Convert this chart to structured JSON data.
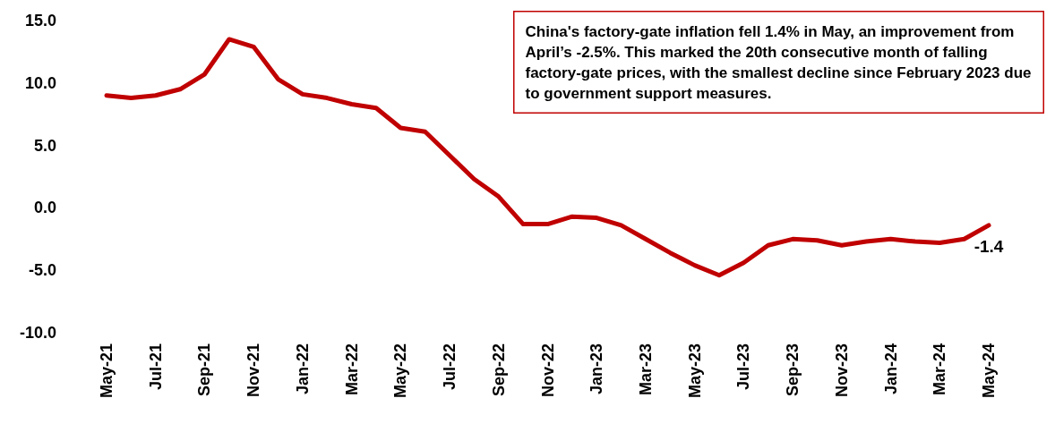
{
  "chart_data": {
    "type": "line",
    "categories": [
      "May-21",
      null,
      "Jul-21",
      null,
      "Sep-21",
      null,
      "Nov-21",
      null,
      "Jan-22",
      null,
      "Mar-22",
      null,
      "May-22",
      null,
      "Jul-22",
      null,
      "Sep-22",
      null,
      "Nov-22",
      null,
      "Jan-23",
      null,
      "Mar-23",
      null,
      "May-23",
      null,
      "Jul-23",
      null,
      "Sep-23",
      null,
      "Nov-23",
      null,
      "Jan-24",
      null,
      "Mar-24",
      null,
      "May-24"
    ],
    "series": [
      {
        "color": "#c00000",
        "values": [
          9.0,
          8.8,
          9.0,
          9.5,
          10.7,
          13.5,
          12.9,
          10.3,
          9.1,
          8.8,
          8.3,
          8.0,
          6.4,
          6.1,
          4.2,
          2.3,
          0.9,
          -1.3,
          -1.3,
          -0.7,
          -0.8,
          -1.4,
          -2.5,
          -3.6,
          -4.6,
          -5.4,
          -4.4,
          -3.0,
          -2.5,
          -2.6,
          -3.0,
          -2.7,
          -2.5,
          -2.7,
          -2.8,
          -2.5,
          -1.4
        ],
        "value_labels": [
          null,
          null,
          null,
          null,
          null,
          null,
          null,
          null,
          null,
          null,
          null,
          null,
          null,
          null,
          null,
          null,
          null,
          null,
          null,
          null,
          null,
          null,
          null,
          null,
          null,
          null,
          null,
          null,
          null,
          null,
          null,
          null,
          null,
          null,
          null,
          null,
          "-1.4"
        ]
      }
    ],
    "ylim": [
      -10,
      15
    ],
    "yticks": [
      {
        "value": -10,
        "label": "-10.0"
      },
      {
        "value": -5,
        "label": "-5.0"
      },
      {
        "value": 0,
        "label": "0.0"
      },
      {
        "value": 5,
        "label": "5.0"
      },
      {
        "value": 10,
        "label": "10.0"
      },
      {
        "value": 15,
        "label": "15.0"
      }
    ],
    "annotations": [
      "China's factory-gate inflation fell 1.4% in May, an improvement from April’s -2.5%. This marked the 20th consecutive month of falling factory-gate prices, with the smallest decline since February 2023 due to government support measures."
    ],
    "grid": false,
    "marker": "none",
    "line_style": "solid"
  }
}
